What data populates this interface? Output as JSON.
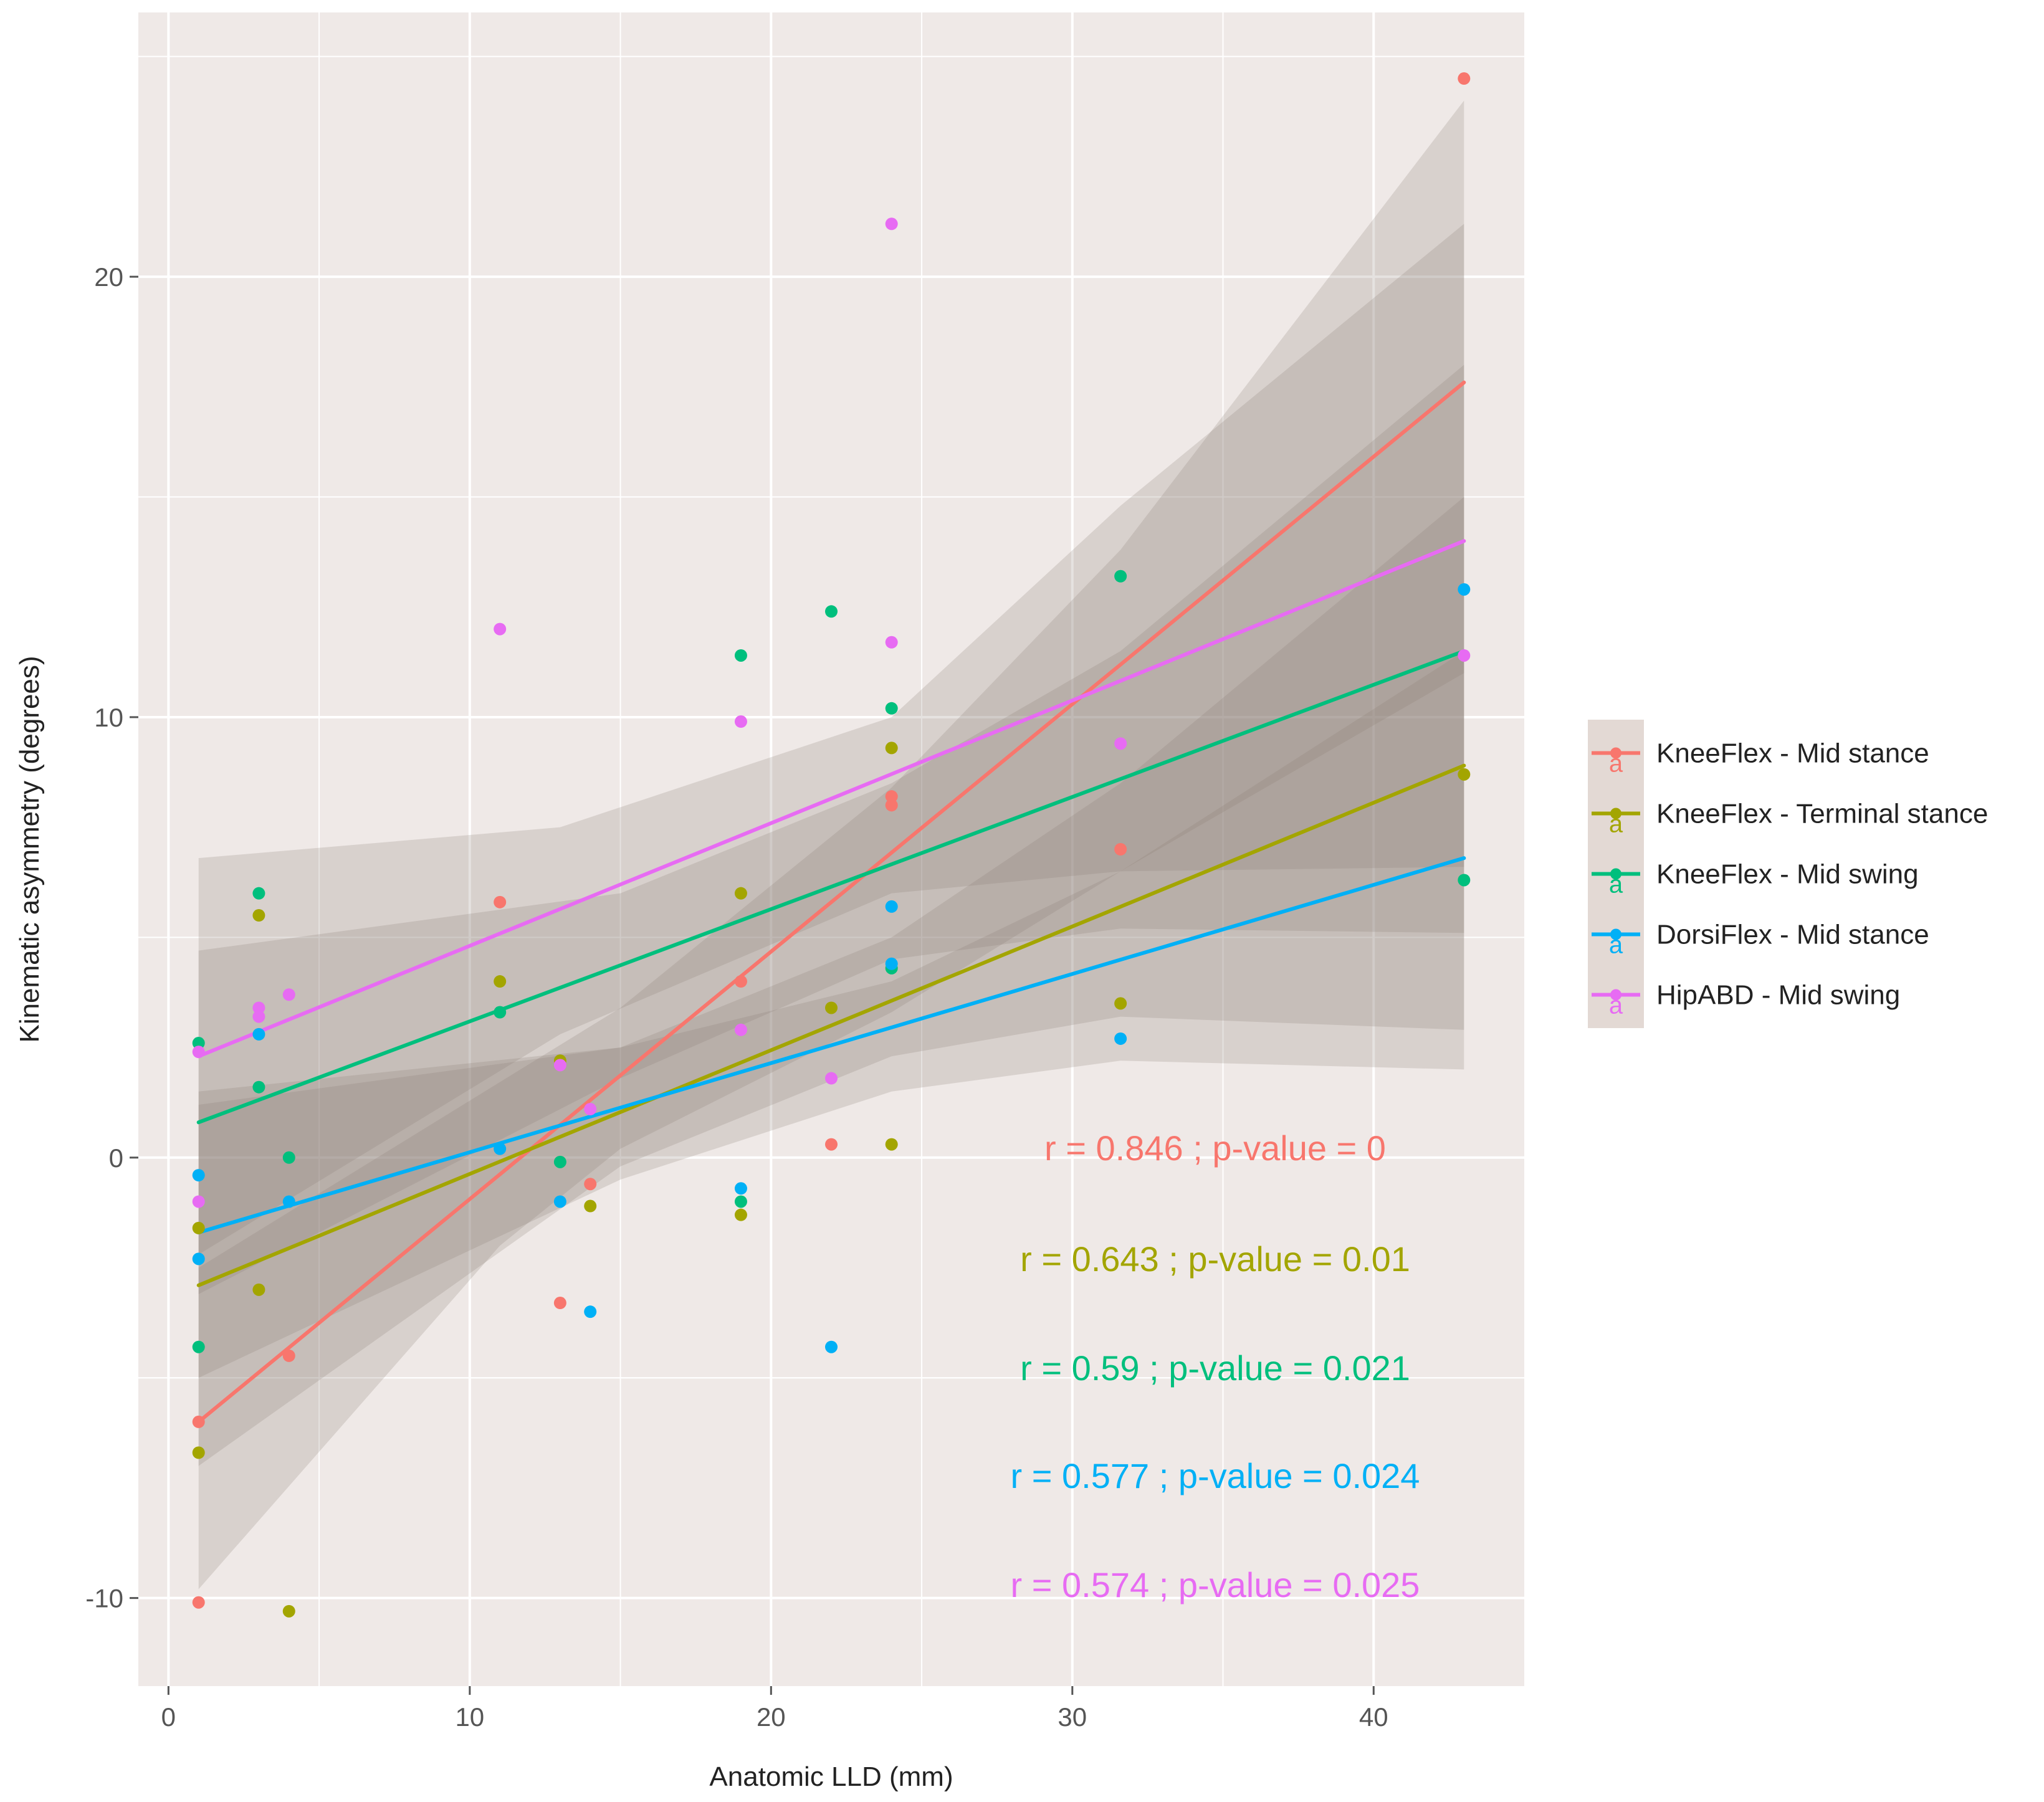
{
  "chart_data": {
    "type": "scatter",
    "xlabel": "Anatomic LLD (mm)",
    "ylabel": "Kinematic asymmetry (degrees)",
    "xlim": [
      -1,
      45
    ],
    "ylim": [
      -12,
      26
    ],
    "x_ticks": [
      0,
      10,
      20,
      30,
      40
    ],
    "x_tick_labels": [
      "0",
      "10",
      "20",
      "30",
      "40"
    ],
    "y_ticks": [
      -10,
      0,
      10,
      20
    ],
    "y_tick_labels": [
      "-10",
      "0",
      "10",
      "20"
    ],
    "grid": true,
    "legend_position": "right",
    "series": [
      {
        "name": "KneeFlex - Mid stance",
        "color": "#F8766D",
        "points": [
          [
            1,
            -10.1
          ],
          [
            1,
            -6.0
          ],
          [
            4,
            -4.5
          ],
          [
            11,
            5.8
          ],
          [
            13,
            -3.3
          ],
          [
            14,
            -0.6
          ],
          [
            19,
            4.0
          ],
          [
            22,
            0.3
          ],
          [
            24,
            8.2
          ],
          [
            24,
            8.0
          ],
          [
            31.6,
            7.0
          ],
          [
            43,
            24.5
          ]
        ],
        "fit": [
          [
            1,
            -6.0
          ],
          [
            43,
            17.6
          ]
        ],
        "band_upper": [
          [
            1,
            -2.5
          ],
          [
            15,
            3.4
          ],
          [
            24,
            8.4
          ],
          [
            31.6,
            13.8
          ],
          [
            43,
            24.0
          ]
        ],
        "band_lower": [
          [
            1,
            -9.8
          ],
          [
            11,
            -2.0
          ],
          [
            15,
            0.2
          ],
          [
            24,
            3.3
          ],
          [
            31.6,
            6.5
          ],
          [
            43,
            11.0
          ]
        ],
        "annotation": "r =  0.846 ; p-value =  0"
      },
      {
        "name": "KneeFlex - Terminal stance",
        "color": "#A3A500",
        "points": [
          [
            1,
            -1.6
          ],
          [
            1,
            -6.7
          ],
          [
            3,
            5.5
          ],
          [
            3,
            -3.0
          ],
          [
            4,
            -10.3
          ],
          [
            11,
            4.0
          ],
          [
            13,
            2.2
          ],
          [
            14,
            -1.1
          ],
          [
            19,
            6.0
          ],
          [
            19,
            -1.3
          ],
          [
            22,
            3.4
          ],
          [
            24,
            9.3
          ],
          [
            24,
            0.3
          ],
          [
            31.6,
            3.5
          ],
          [
            43,
            8.7
          ]
        ],
        "fit": [
          [
            1,
            -2.9
          ],
          [
            43,
            8.9
          ]
        ],
        "band_upper": [
          [
            1,
            1.2
          ],
          [
            15,
            2.5
          ],
          [
            24,
            5.0
          ],
          [
            31.6,
            8.5
          ],
          [
            43,
            15.0
          ]
        ],
        "band_lower": [
          [
            1,
            -7.0
          ],
          [
            15,
            -0.2
          ],
          [
            24,
            2.3
          ],
          [
            31.6,
            3.2
          ],
          [
            43,
            2.9
          ]
        ],
        "annotation": "r =  0.643 ; p-value =  0.01"
      },
      {
        "name": "KneeFlex - Mid swing",
        "color": "#00BF7D",
        "points": [
          [
            1,
            2.6
          ],
          [
            1,
            -4.3
          ],
          [
            3,
            6.0
          ],
          [
            3,
            1.6
          ],
          [
            4,
            0.0
          ],
          [
            11,
            3.3
          ],
          [
            13,
            -0.1
          ],
          [
            19,
            11.4
          ],
          [
            19,
            -1.0
          ],
          [
            22,
            12.4
          ],
          [
            24,
            10.2
          ],
          [
            24,
            4.3
          ],
          [
            31.6,
            13.2
          ],
          [
            43,
            6.3
          ]
        ],
        "fit": [
          [
            1,
            0.8
          ],
          [
            43,
            11.5
          ]
        ],
        "band_upper": [
          [
            1,
            4.7
          ],
          [
            15,
            6.0
          ],
          [
            24,
            8.5
          ],
          [
            31.6,
            11.5
          ],
          [
            43,
            18.0
          ]
        ],
        "band_lower": [
          [
            1,
            -3.1
          ],
          [
            15,
            1.8
          ],
          [
            24,
            4.5
          ],
          [
            31.6,
            5.2
          ],
          [
            43,
            5.1
          ]
        ],
        "annotation": "r =  0.59 ; p-value =  0.021"
      },
      {
        "name": "DorsiFlex - Mid stance",
        "color": "#00B0F6",
        "points": [
          [
            1,
            -0.4
          ],
          [
            1,
            -2.3
          ],
          [
            3,
            2.8
          ],
          [
            4,
            -1.0
          ],
          [
            11,
            0.2
          ],
          [
            13,
            -1.0
          ],
          [
            14,
            -3.5
          ],
          [
            19,
            -0.7
          ],
          [
            22,
            -4.3
          ],
          [
            24,
            5.7
          ],
          [
            24,
            4.4
          ],
          [
            31.6,
            2.7
          ],
          [
            43,
            12.9
          ]
        ],
        "fit": [
          [
            1,
            -1.7
          ],
          [
            43,
            6.8
          ]
        ],
        "band_upper": [
          [
            1,
            1.5
          ],
          [
            15,
            2.5
          ],
          [
            24,
            4.0
          ],
          [
            31.6,
            6.5
          ],
          [
            43,
            11.5
          ]
        ],
        "band_lower": [
          [
            1,
            -5.0
          ],
          [
            15,
            -0.5
          ],
          [
            24,
            1.5
          ],
          [
            31.6,
            2.2
          ],
          [
            43,
            2.0
          ]
        ],
        "annotation": "r =  0.577 ; p-value =  0.024"
      },
      {
        "name": "HipABD - Mid swing",
        "color": "#E76BF3",
        "points": [
          [
            1,
            -1.0
          ],
          [
            1,
            2.4
          ],
          [
            3,
            3.4
          ],
          [
            3,
            3.2
          ],
          [
            4,
            3.7
          ],
          [
            11,
            12.0
          ],
          [
            13,
            2.1
          ],
          [
            14,
            1.1
          ],
          [
            19,
            9.9
          ],
          [
            19,
            2.9
          ],
          [
            22,
            1.8
          ],
          [
            24,
            11.7
          ],
          [
            24,
            21.2
          ],
          [
            31.6,
            9.4
          ],
          [
            43,
            11.4
          ]
        ],
        "fit": [
          [
            1,
            2.3
          ],
          [
            43,
            14.0
          ]
        ],
        "band_upper": [
          [
            1,
            6.8
          ],
          [
            13,
            7.5
          ],
          [
            24,
            10.0
          ],
          [
            31.6,
            14.8
          ],
          [
            43,
            21.2
          ]
        ],
        "band_lower": [
          [
            1,
            -2.2
          ],
          [
            13,
            2.8
          ],
          [
            24,
            6.0
          ],
          [
            31.6,
            6.5
          ],
          [
            43,
            6.6
          ]
        ],
        "annotation": "r =  0.574 ; p-value =  0.025"
      }
    ]
  }
}
